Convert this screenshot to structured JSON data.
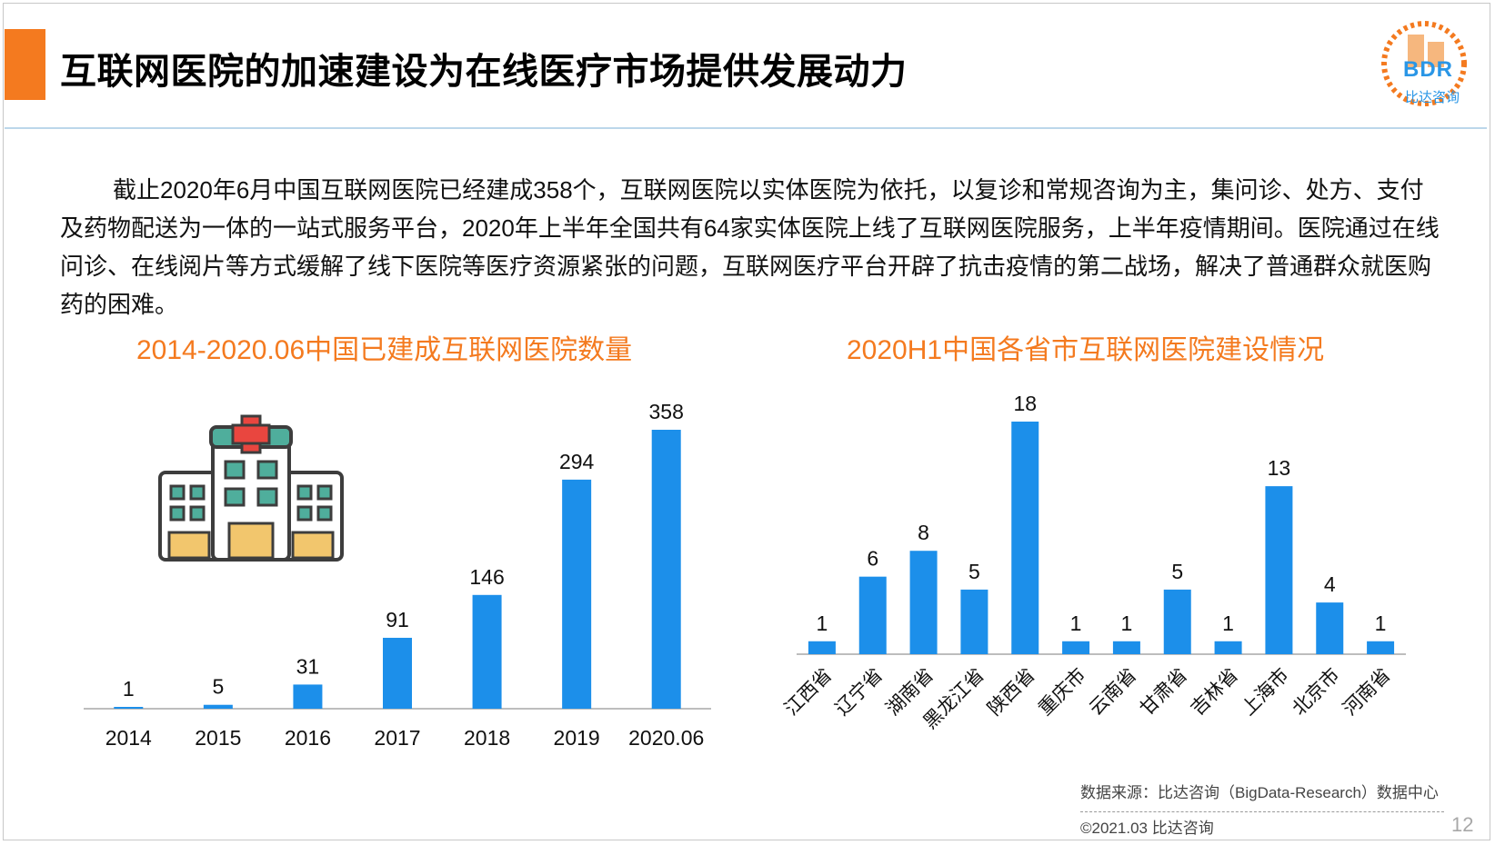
{
  "title": "互联网医院的加速建设为在线医疗市场提供发展动力",
  "logo": {
    "text": "BDR",
    "sub": "比达咨询"
  },
  "intro": "截止2020年6月中国互联网医院已经建成358个，互联网医院以实体医院为依托，以复诊和常规咨询为主，集问诊、处方、支付及药物配送为一体的一站式服务平台，2020年上半年全国共有64家实体医院上线了互联网医院服务，上半年疫情期间。医院通过在线问诊、在线阅片等方式缓解了线下医院等医疗资源紧张的问题，互联网医疗平台开辟了抗击疫情的第二战场，解决了普通群众就医购药的困难。",
  "chart_data": [
    {
      "type": "bar",
      "title": "2014-2020.06中国已建成互联网医院数量",
      "categories": [
        "2014",
        "2015",
        "2016",
        "2017",
        "2018",
        "2019",
        "2020.06"
      ],
      "values": [
        1,
        5,
        31,
        91,
        146,
        294,
        358
      ],
      "color": "#1c8fea",
      "ylim": [
        0,
        358
      ]
    },
    {
      "type": "bar",
      "title": "2020H1中国各省市互联网医院建设情况",
      "categories": [
        "江西省",
        "辽宁省",
        "湖南省",
        "黑龙江省",
        "陕西省",
        "重庆市",
        "云南省",
        "甘肃省",
        "吉林省",
        "上海市",
        "北京市",
        "河南省"
      ],
      "values": [
        1,
        6,
        8,
        5,
        18,
        1,
        1,
        5,
        1,
        13,
        4,
        1
      ],
      "color": "#1c8fea",
      "ylim": [
        0,
        18
      ]
    }
  ],
  "footer": {
    "source": "数据来源：比达咨询（BigData-Research）数据中心",
    "copyright": "©2021.03 比达咨询",
    "page": "12"
  }
}
